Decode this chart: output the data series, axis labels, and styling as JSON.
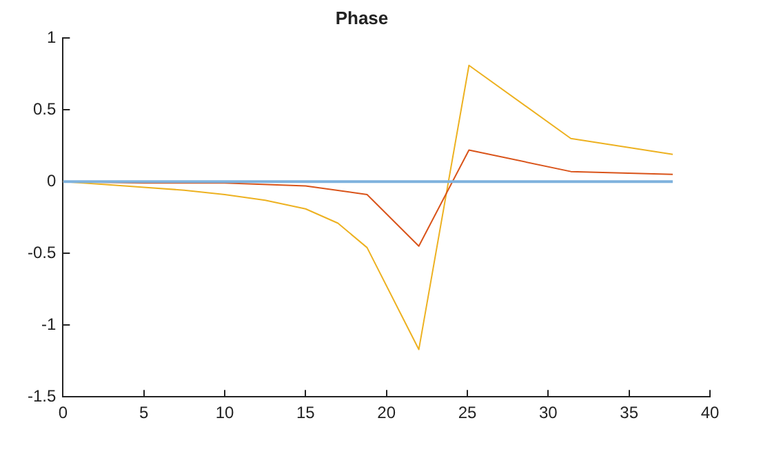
{
  "chart_data": {
    "type": "line",
    "title": "Phase",
    "xlim": [
      0,
      40
    ],
    "xticks": [
      0,
      5,
      10,
      15,
      20,
      25,
      30,
      35,
      40
    ],
    "ylim": [
      -1.5,
      1
    ],
    "yticks": [
      1,
      0.5,
      0,
      -0.5,
      -1,
      -1.5
    ],
    "grid": false,
    "legend": false,
    "marker": "none",
    "line_style": "solid",
    "series": [
      {
        "color": "#7fb2dd",
        "x": [
          0,
          37.7
        ],
        "values": [
          0,
          0
        ]
      },
      {
        "color": "#d95319",
        "x": [
          0,
          5,
          10,
          15,
          18.8,
          22,
          25.1,
          31.4,
          37.7
        ],
        "values": [
          0,
          -0.01,
          -0.01,
          -0.03,
          -0.09,
          -0.45,
          0.22,
          0.07,
          0.05
        ]
      },
      {
        "color": "#edb120",
        "x": [
          0,
          2.5,
          5,
          7.5,
          10,
          12.5,
          15,
          17,
          18.8,
          22,
          25.1,
          31.4,
          37.7
        ],
        "values": [
          0,
          -0.02,
          -0.04,
          -0.06,
          -0.09,
          -0.13,
          -0.19,
          -0.29,
          -0.46,
          -1.17,
          0.81,
          0.3,
          0.19
        ]
      }
    ]
  }
}
